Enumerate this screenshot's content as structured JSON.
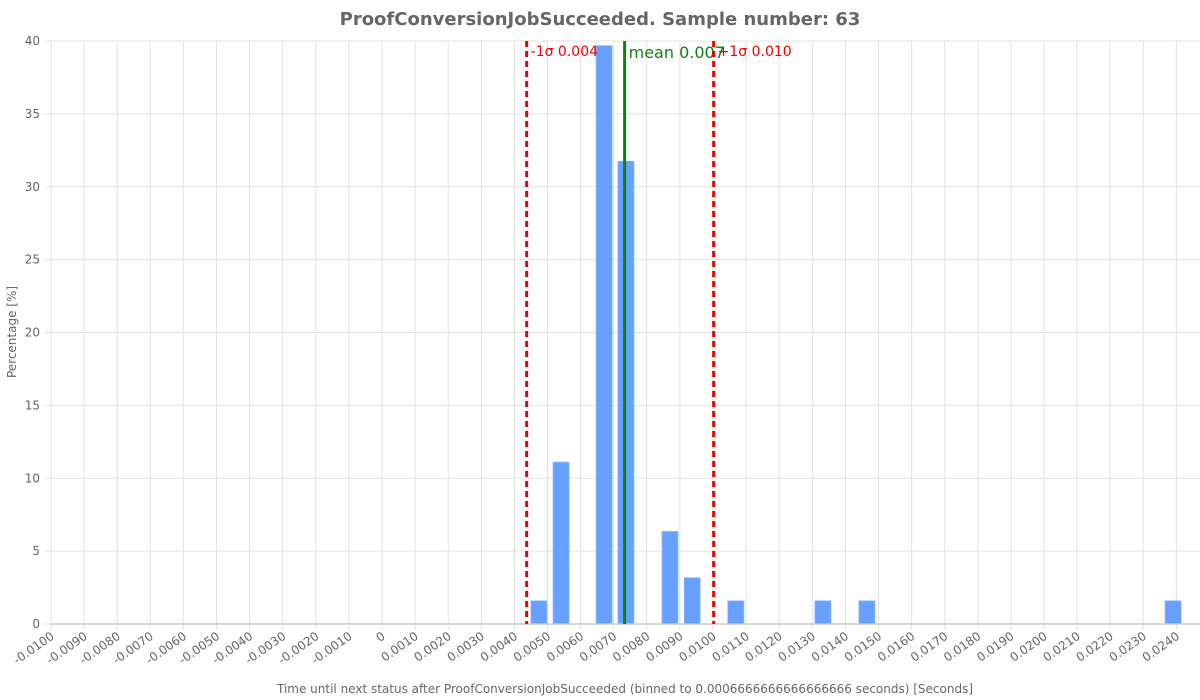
{
  "chart_data": {
    "type": "bar",
    "title": "ProofConversionJobSucceeded. Sample number: 63",
    "xlabel": "Time until next status after ProofConversionJobSucceeded (binned to 0.0006666666666666666 seconds) [Seconds]",
    "ylabel": "Percentage [%]",
    "ylim": [
      0,
      40
    ],
    "xlim": [
      -0.01,
      0.0247
    ],
    "grid": true,
    "legend": "none",
    "yticks": [
      0,
      5,
      10,
      15,
      20,
      25,
      30,
      35,
      40
    ],
    "xtick_labels": [
      "-0.0100",
      "-0.0090",
      "-0.0080",
      "-0.0070",
      "-0.0060",
      "-0.0050",
      "-0.0040",
      "-0.0030",
      "-0.0020",
      "-0.0010",
      "0",
      "0.0010",
      "0.0020",
      "0.0030",
      "0.0040",
      "0.0050",
      "0.0060",
      "0.0070",
      "0.0080",
      "0.0090",
      "0.0100",
      "0.0110",
      "0.0120",
      "0.0130",
      "0.0140",
      "0.0150",
      "0.0160",
      "0.0170",
      "0.0180",
      "0.0190",
      "0.0200",
      "0.0210",
      "0.0220",
      "0.0230",
      "0.0240"
    ],
    "bin_width": 0.0006666666666666666,
    "x": [
      0.00474,
      0.00541,
      0.00671,
      0.00737,
      0.0087,
      0.00937,
      0.01069,
      0.01332,
      0.01465,
      0.0239
    ],
    "values": [
      1.59,
      11.11,
      39.68,
      31.75,
      6.35,
      3.17,
      1.59,
      1.59,
      1.59,
      1.59
    ],
    "bar_color": "#639dff",
    "annotations": [
      {
        "type": "vline",
        "x": 0.00437,
        "label": "-1σ 0.004",
        "color": "#ee0000",
        "style": "dashed"
      },
      {
        "type": "vline",
        "x": 0.00733,
        "label": "mean 0.007",
        "color": "#117f11",
        "style": "solid"
      },
      {
        "type": "vline",
        "x": 0.01002,
        "label": "+1σ 0.010",
        "color": "#ee0000",
        "style": "dashed"
      }
    ]
  }
}
